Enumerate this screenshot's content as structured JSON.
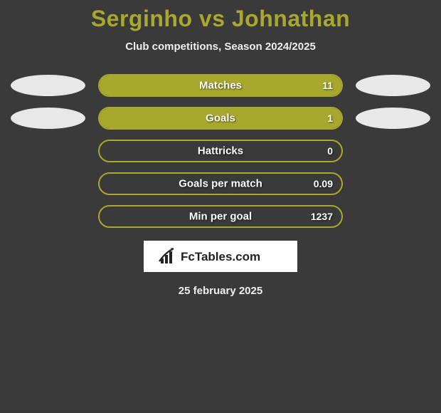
{
  "title": "Serginho vs Johnathan",
  "subtitle": "Club competitions, Season 2024/2025",
  "colors": {
    "accent": "#a8a82e",
    "background": "#3a3a3a",
    "oval": "#e8e8e8",
    "text": "#ffffff",
    "logo_bg": "#ffffff",
    "logo_text": "#222222"
  },
  "stats": [
    {
      "label": "Matches",
      "value": "11",
      "fill_pct": 100,
      "show_ovals": true
    },
    {
      "label": "Goals",
      "value": "1",
      "fill_pct": 100,
      "show_ovals": true
    },
    {
      "label": "Hattricks",
      "value": "0",
      "fill_pct": 0,
      "show_ovals": false
    },
    {
      "label": "Goals per match",
      "value": "0.09",
      "fill_pct": 0,
      "show_ovals": false
    },
    {
      "label": "Min per goal",
      "value": "1237",
      "fill_pct": 0,
      "show_ovals": false
    }
  ],
  "logo": {
    "text": "FcTables.com"
  },
  "date": "25 february 2025"
}
